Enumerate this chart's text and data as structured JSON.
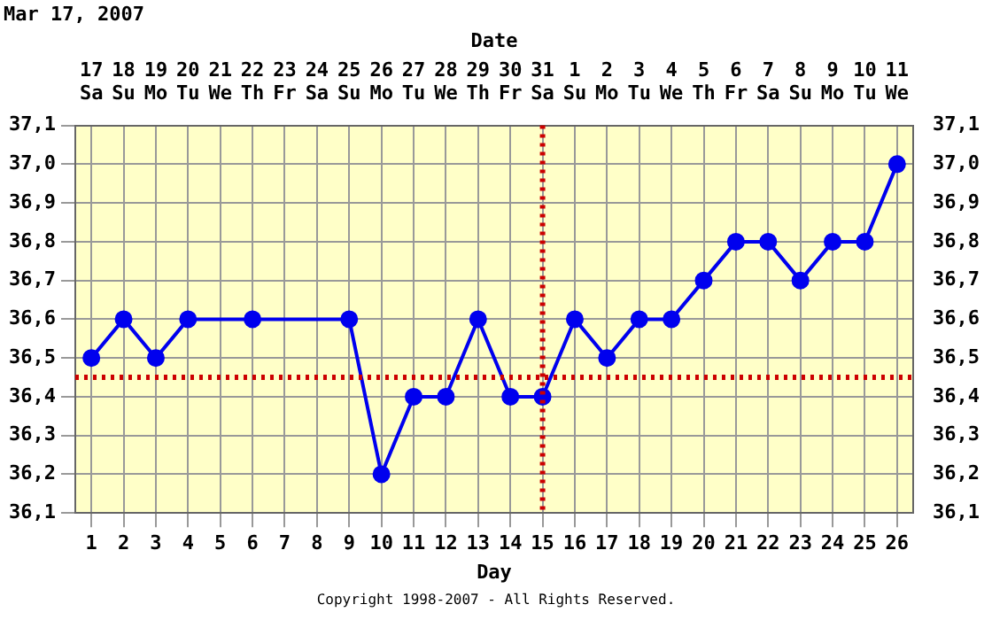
{
  "chart_data": {
    "type": "line",
    "title": "Mar 17, 2007",
    "xlabel": "Day",
    "x2label": "Date",
    "x": [
      1,
      2,
      3,
      4,
      5,
      6,
      7,
      8,
      9,
      10,
      11,
      12,
      13,
      14,
      15,
      16,
      17,
      18,
      19,
      20,
      21,
      22,
      23,
      24,
      25,
      26
    ],
    "series": [
      {
        "color": "#0000ee",
        "values": [
          36.5,
          36.6,
          36.5,
          36.6,
          null,
          36.6,
          null,
          null,
          36.6,
          36.2,
          36.4,
          36.4,
          36.6,
          36.4,
          36.4,
          36.6,
          36.5,
          36.6,
          36.6,
          36.7,
          36.8,
          36.8,
          36.7,
          36.8,
          36.8,
          37.0
        ]
      }
    ],
    "xlim": [
      0.5,
      26.5
    ],
    "xticks": [
      1,
      2,
      3,
      4,
      5,
      6,
      7,
      8,
      9,
      10,
      11,
      12,
      13,
      14,
      15,
      16,
      17,
      18,
      19,
      20,
      21,
      22,
      23,
      24,
      25,
      26
    ],
    "x2lim": [
      "2007-03-16T12:00",
      "2007-04-11T12:00"
    ],
    "x2ticks": [
      {
        "value": "2007-03-17",
        "label": "17 Sa"
      },
      {
        "value": "2007-03-18",
        "label": "18 Su"
      },
      {
        "value": "2007-03-19",
        "label": "19 Mo"
      },
      {
        "value": "2007-03-20",
        "label": "20 Tu"
      },
      {
        "value": "2007-03-21",
        "label": "21 We"
      },
      {
        "value": "2007-03-22",
        "label": "22 Th"
      },
      {
        "value": "2007-03-23",
        "label": "23 Fr"
      },
      {
        "value": "2007-03-24",
        "label": "24 Sa"
      },
      {
        "value": "2007-03-25",
        "label": "25 Su"
      },
      {
        "value": "2007-03-26",
        "label": "26 Mo"
      },
      {
        "value": "2007-03-27",
        "label": "27 Tu"
      },
      {
        "value": "2007-03-28",
        "label": "28 We"
      },
      {
        "value": "2007-03-29",
        "label": "29 Th"
      },
      {
        "value": "2007-03-30",
        "label": "30 Fr"
      },
      {
        "value": "2007-03-31",
        "label": "31 Sa"
      },
      {
        "value": "2007-04-01",
        "label": "1 Su"
      },
      {
        "value": "2007-04-02",
        "label": "2 Mo"
      },
      {
        "value": "2007-04-03",
        "label": "3 Tu"
      },
      {
        "value": "2007-04-04",
        "label": "4 We"
      },
      {
        "value": "2007-04-05",
        "label": "5 Th"
      },
      {
        "value": "2007-04-06",
        "label": "6 Fr"
      },
      {
        "value": "2007-04-07",
        "label": "7 Sa"
      },
      {
        "value": "2007-04-08",
        "label": "8 Su"
      },
      {
        "value": "2007-04-09",
        "label": "9 Mo"
      },
      {
        "value": "2007-04-10",
        "label": "10 Tu"
      },
      {
        "value": "2007-04-11",
        "label": "11 We"
      }
    ],
    "ylim": [
      36.1,
      37.1
    ],
    "yticks": [
      {
        "value": 36.1,
        "label": "36,1"
      },
      {
        "value": 36.2,
        "label": "36,2"
      },
      {
        "value": 36.3,
        "label": "36,3"
      },
      {
        "value": 36.4,
        "label": "36,4"
      },
      {
        "value": 36.5,
        "label": "36,5"
      },
      {
        "value": 36.6,
        "label": "36,6"
      },
      {
        "value": 36.7,
        "label": "36,7"
      },
      {
        "value": 36.8,
        "label": "36,8"
      },
      {
        "value": 36.9,
        "label": "36,9"
      },
      {
        "value": 37.0,
        "label": "37,0"
      },
      {
        "value": 37.1,
        "label": "37,1"
      }
    ],
    "y2lim": [
      36.1,
      37.1
    ],
    "y2ticks": [
      {
        "value": 36.1,
        "label": "36,1"
      },
      {
        "value": 36.2,
        "label": "36,2"
      },
      {
        "value": 36.3,
        "label": "36,3"
      },
      {
        "value": 36.4,
        "label": "36,4"
      },
      {
        "value": 36.5,
        "label": "36,5"
      },
      {
        "value": 36.6,
        "label": "36,6"
      },
      {
        "value": 36.7,
        "label": "36,7"
      },
      {
        "value": 36.8,
        "label": "36,8"
      },
      {
        "value": 36.9,
        "label": "36,9"
      },
      {
        "value": 37.0,
        "label": "37,0"
      },
      {
        "value": 37.1,
        "label": "37,1"
      }
    ],
    "ref_lines": [
      {
        "axis": "y",
        "value": 36.45,
        "color": "#cc0000",
        "line_style": "dotted"
      },
      {
        "axis": "x",
        "value": 15,
        "color": "#cc0000",
        "line_style": "dotted"
      }
    ],
    "annotations": [
      "Copyright 1998-2007 - All Rights Reserved."
    ],
    "grid": true,
    "legend": false,
    "marker": "circle",
    "line_style": "solid"
  }
}
